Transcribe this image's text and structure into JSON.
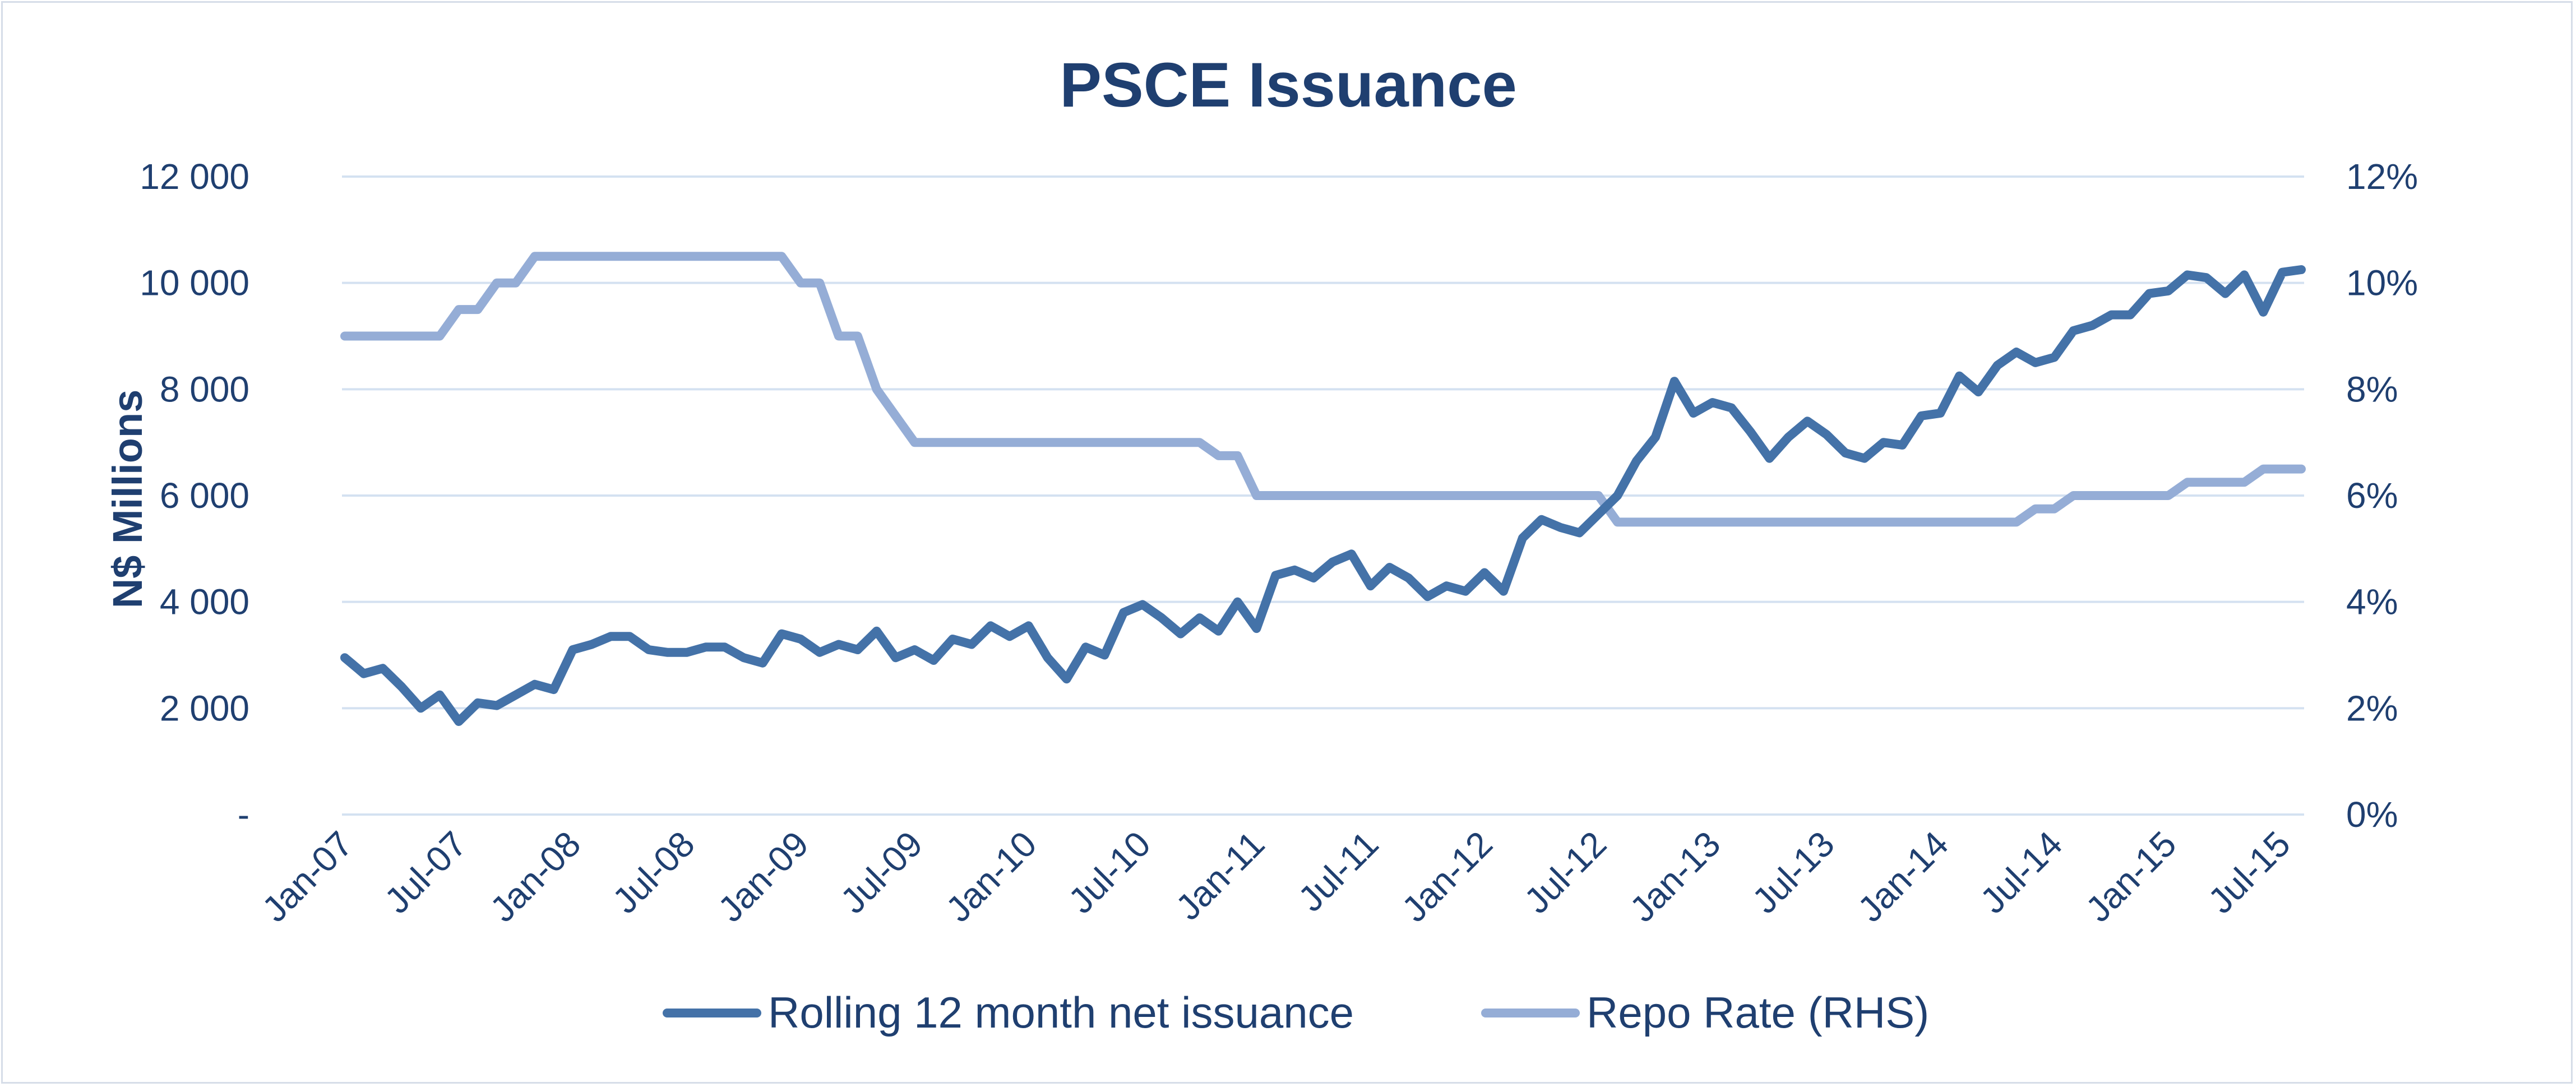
{
  "chart_data": {
    "type": "line",
    "title": "PSCE Issuance",
    "ylabel": "N$ Millions",
    "y2label": "",
    "xlabel": "",
    "ylim": [
      0,
      12000
    ],
    "y2lim": [
      0,
      12
    ],
    "yticks": [
      "-",
      "2 000",
      "4 000",
      "6 000",
      "8 000",
      "10 000",
      "12 000"
    ],
    "y2ticks": [
      "0%",
      "2%",
      "4%",
      "6%",
      "8%",
      "10%",
      "12%"
    ],
    "xticks": [
      "Jan-07",
      "Jul-07",
      "Jan-08",
      "Jul-08",
      "Jan-09",
      "Jul-09",
      "Jan-10",
      "Jul-10",
      "Jan-11",
      "Jul-11",
      "Jan-12",
      "Jul-12",
      "Jan-13",
      "Jul-13",
      "Jan-14",
      "Jul-14",
      "Jan-15",
      "Jul-15"
    ],
    "x_start": "Jan-07",
    "grid": true,
    "legend_position": "bottom",
    "series": [
      {
        "name": "Rolling 12 month net issuance",
        "axis": "left",
        "color": "#4472a8",
        "values": [
          2950,
          2650,
          2750,
          2400,
          2000,
          2250,
          1750,
          2100,
          2050,
          2250,
          2450,
          2350,
          3100,
          3200,
          3350,
          3350,
          3100,
          3050,
          3050,
          3150,
          3150,
          2950,
          2850,
          3400,
          3300,
          3050,
          3200,
          3100,
          3450,
          2950,
          3100,
          2900,
          3300,
          3200,
          3550,
          3350,
          3550,
          2950,
          2550,
          3150,
          3000,
          3800,
          3950,
          3700,
          3400,
          3700,
          3450,
          4000,
          3500,
          4500,
          4600,
          4450,
          4750,
          4900,
          4300,
          4650,
          4450,
          4100,
          4300,
          4200,
          4550,
          4200,
          5200,
          5550,
          5400,
          5300,
          5650,
          6000,
          6650,
          7100,
          8150,
          7550,
          7750,
          7650,
          7200,
          6700,
          7100,
          7400,
          7150,
          6800,
          6700,
          7000,
          6950,
          7500,
          7550,
          8250,
          7950,
          8450,
          8700,
          8500,
          8600,
          9100,
          9200,
          9400,
          9400,
          9800,
          9850,
          10150,
          10100,
          9800,
          10150,
          9450,
          10200,
          10250
        ]
      },
      {
        "name": "Repo Rate (RHS)",
        "axis": "right",
        "color": "#95add6",
        "values": [
          9.0,
          9.0,
          9.0,
          9.0,
          9.0,
          9.0,
          9.5,
          9.5,
          10.0,
          10.0,
          10.5,
          10.5,
          10.5,
          10.5,
          10.5,
          10.5,
          10.5,
          10.5,
          10.5,
          10.5,
          10.5,
          10.5,
          10.5,
          10.5,
          10.0,
          10.0,
          9.0,
          9.0,
          8.0,
          7.5,
          7.0,
          7.0,
          7.0,
          7.0,
          7.0,
          7.0,
          7.0,
          7.0,
          7.0,
          7.0,
          7.0,
          7.0,
          7.0,
          7.0,
          7.0,
          7.0,
          6.75,
          6.75,
          6.0,
          6.0,
          6.0,
          6.0,
          6.0,
          6.0,
          6.0,
          6.0,
          6.0,
          6.0,
          6.0,
          6.0,
          6.0,
          6.0,
          6.0,
          6.0,
          6.0,
          6.0,
          6.0,
          5.5,
          5.5,
          5.5,
          5.5,
          5.5,
          5.5,
          5.5,
          5.5,
          5.5,
          5.5,
          5.5,
          5.5,
          5.5,
          5.5,
          5.5,
          5.5,
          5.5,
          5.5,
          5.5,
          5.5,
          5.5,
          5.5,
          5.75,
          5.75,
          6.0,
          6.0,
          6.0,
          6.0,
          6.0,
          6.0,
          6.25,
          6.25,
          6.25,
          6.25,
          6.5,
          6.5,
          6.5
        ]
      }
    ]
  }
}
